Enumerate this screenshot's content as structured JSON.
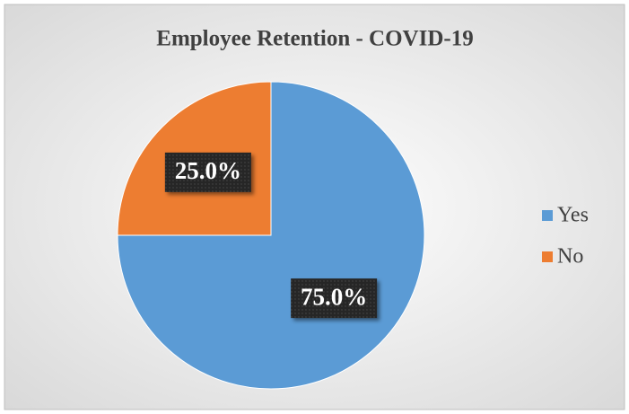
{
  "chart_data": {
    "type": "pie",
    "title": "Employee Retention - COVID-19",
    "categories": [
      "Yes",
      "No"
    ],
    "values": [
      75,
      25
    ],
    "value_labels": [
      "75.0%",
      "25.0%"
    ],
    "colors": [
      "#5b9bd5",
      "#ed7d31"
    ],
    "legend": "right"
  }
}
